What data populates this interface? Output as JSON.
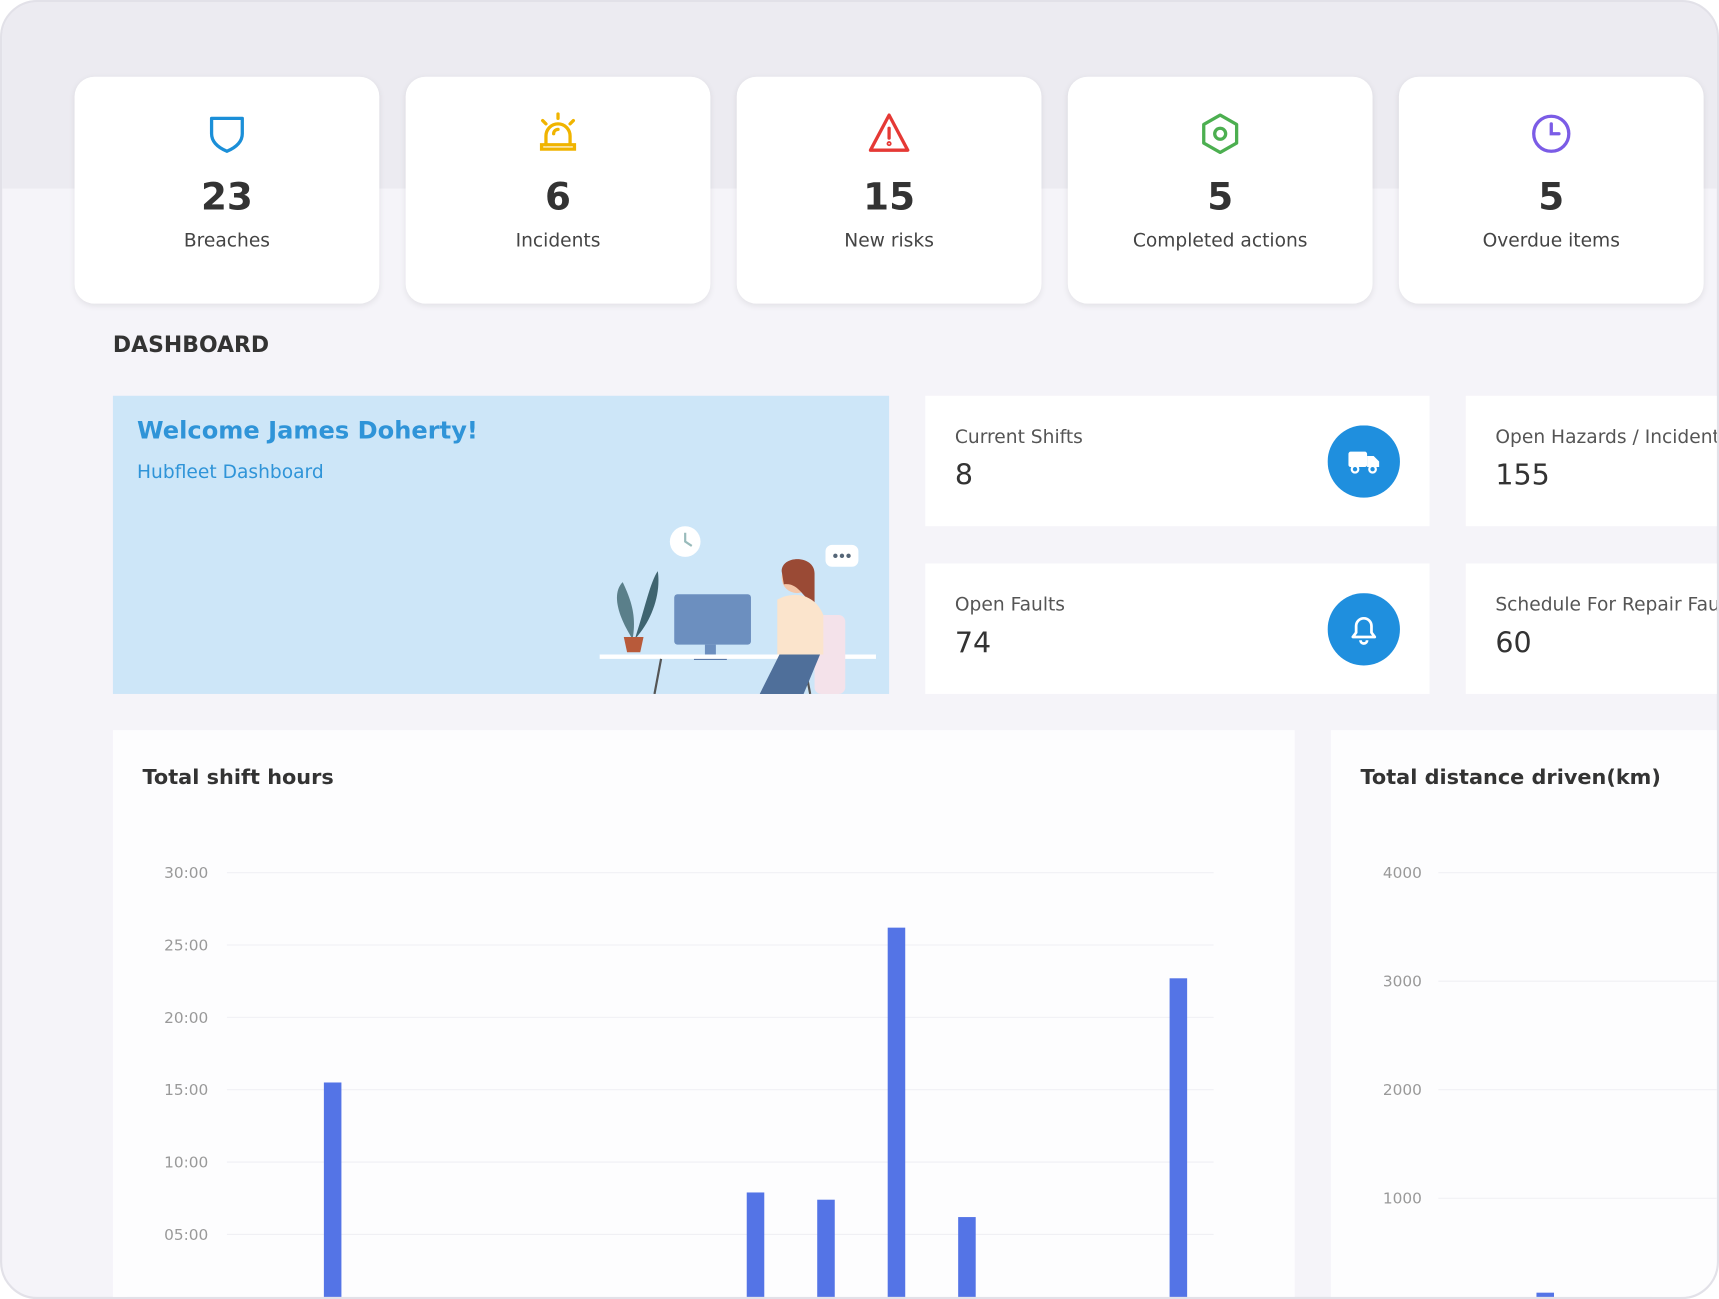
{
  "stats": [
    {
      "value": 23,
      "label": "Breaches"
    },
    {
      "value": 6,
      "label": "Incidents"
    },
    {
      "value": 15,
      "label": "New risks"
    },
    {
      "value": 5,
      "label": "Completed actions"
    },
    {
      "value": 5,
      "label": "Overdue items"
    }
  ],
  "section_title": "DASHBOARD",
  "welcome": {
    "title": "Welcome James Doherty!",
    "subtitle": "Hubfleet Dashboard"
  },
  "metrics": [
    {
      "label": "Current Shifts",
      "value": 8
    },
    {
      "label": "Open Hazards / Incidents",
      "value": 155
    },
    {
      "label": "Open Faults",
      "value": 74
    },
    {
      "label": "Schedule For Repair Faults",
      "value": 60
    }
  ],
  "chart_data": [
    {
      "type": "bar",
      "title": "Total shift hours",
      "color": "#5474e6",
      "categories": [
        null,
        null,
        null,
        null,
        null,
        null,
        null,
        null,
        null,
        null,
        null,
        null,
        null,
        null
      ],
      "values": [
        0,
        15.5,
        0,
        0,
        0,
        0,
        0,
        7.9,
        7.4,
        26.2,
        6.2,
        0,
        0,
        22.7
      ],
      "ylim": [
        0,
        30
      ],
      "yticks": [
        {
          "value": 5,
          "label": "05:00"
        },
        {
          "value": 10,
          "label": "10:00"
        },
        {
          "value": 15,
          "label": "15:00"
        },
        {
          "value": 20,
          "label": "20:00"
        },
        {
          "value": 25,
          "label": "25:00"
        },
        {
          "value": 30,
          "label": "30:00"
        }
      ],
      "grid": true
    },
    {
      "type": "bar",
      "title": "Total distance driven(km)",
      "color": "#5474e6",
      "categories": [
        null,
        null,
        null,
        null
      ],
      "values": [
        0,
        130,
        0,
        0
      ],
      "ylim": [
        0,
        4000
      ],
      "yticks": [
        1000,
        2000,
        3000,
        4000
      ],
      "grid": true
    }
  ]
}
